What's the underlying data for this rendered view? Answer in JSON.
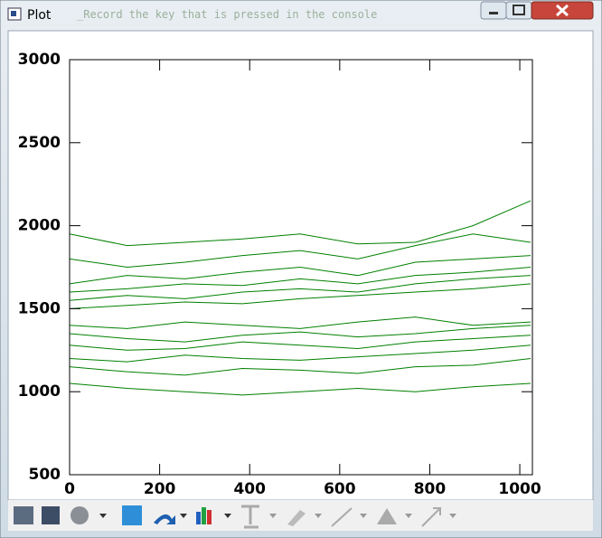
{
  "window": {
    "title": "Plot",
    "behind_text": "_Record the key that is pressed in the console"
  },
  "chart_data": {
    "type": "line",
    "color": "#008000",
    "x": [
      0,
      128,
      256,
      384,
      512,
      640,
      768,
      896,
      1024
    ],
    "series": [
      {
        "values": [
          1950,
          1880,
          1900,
          1920,
          1950,
          1890,
          1900,
          2000,
          2150
        ]
      },
      {
        "values": [
          1800,
          1750,
          1780,
          1820,
          1850,
          1800,
          1880,
          1950,
          1900
        ]
      },
      {
        "values": [
          1650,
          1700,
          1680,
          1720,
          1750,
          1700,
          1780,
          1800,
          1820
        ]
      },
      {
        "values": [
          1600,
          1620,
          1650,
          1640,
          1680,
          1650,
          1700,
          1720,
          1750
        ]
      },
      {
        "values": [
          1550,
          1580,
          1560,
          1600,
          1620,
          1600,
          1650,
          1680,
          1700
        ]
      },
      {
        "values": [
          1500,
          1520,
          1540,
          1530,
          1560,
          1580,
          1600,
          1620,
          1650
        ]
      },
      {
        "values": [
          1400,
          1380,
          1420,
          1400,
          1380,
          1420,
          1450,
          1400,
          1420
        ]
      },
      {
        "values": [
          1350,
          1320,
          1300,
          1340,
          1360,
          1330,
          1350,
          1380,
          1400
        ]
      },
      {
        "values": [
          1280,
          1250,
          1260,
          1300,
          1280,
          1260,
          1300,
          1320,
          1340
        ]
      },
      {
        "values": [
          1200,
          1180,
          1220,
          1200,
          1190,
          1210,
          1230,
          1250,
          1280
        ]
      },
      {
        "values": [
          1150,
          1120,
          1100,
          1140,
          1130,
          1110,
          1150,
          1160,
          1200
        ]
      },
      {
        "values": [
          1050,
          1020,
          1000,
          980,
          1000,
          1020,
          1000,
          1030,
          1050
        ]
      }
    ],
    "xlim": [
      0,
      1028
    ],
    "xticks": [
      0,
      200,
      400,
      600,
      800,
      1000
    ],
    "ylim": [
      500,
      3000
    ],
    "yticks": [
      500,
      1000,
      1500,
      2000,
      2500,
      3000
    ]
  }
}
